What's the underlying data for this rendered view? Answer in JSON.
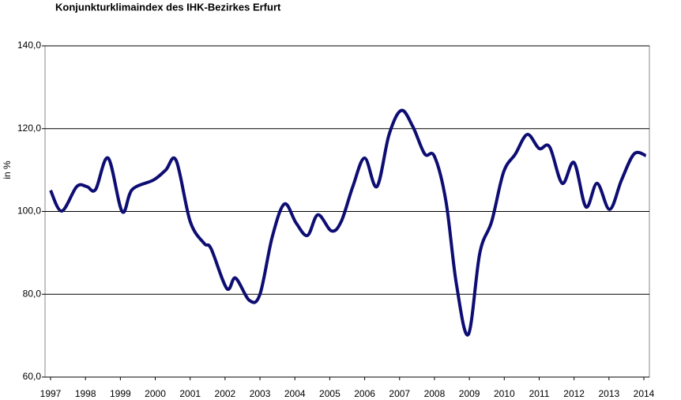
{
  "chart_data": {
    "type": "line",
    "title": "Konjunkturklimaindex des IHK-Bezirkes Erfurt",
    "y_label": "in %",
    "x": [
      1997,
      1997.32,
      1997.75,
      1998.04,
      1998.29,
      1998.65,
      1999.05,
      1999.34,
      1999.95,
      2000.3,
      2000.6,
      2001.0,
      2001.4,
      2001.6,
      2002.05,
      2002.3,
      2002.7,
      2003.0,
      2003.35,
      2003.7,
      2004.03,
      2004.36,
      2004.66,
      2005.05,
      2005.33,
      2005.66,
      2006.0,
      2006.35,
      2006.7,
      2007.05,
      2007.38,
      2007.72,
      2008.0,
      2008.33,
      2008.63,
      2008.97,
      2009.3,
      2009.64,
      2009.98,
      2010.32,
      2010.66,
      2011.0,
      2011.3,
      2011.66,
      2012.0,
      2012.34,
      2012.66,
      2013.02,
      2013.36,
      2013.72,
      2014.06
    ],
    "series": [
      {
        "name": "Konjunkturklimaindex",
        "color": "#0d0d73",
        "values": [
          105.1,
          100.1,
          106.0,
          106.0,
          105.3,
          112.9,
          100.0,
          105.3,
          107.6,
          110.0,
          112.3,
          97.6,
          92.3,
          91.0,
          81.4,
          83.9,
          78.5,
          80.0,
          93.8,
          101.8,
          97.3,
          94.2,
          99.2,
          95.3,
          97.6,
          106.0,
          112.9,
          106.0,
          118.6,
          124.4,
          120.5,
          113.9,
          113.3,
          102.4,
          82.4,
          70.3,
          90.0,
          97.6,
          109.5,
          113.9,
          118.6,
          115.2,
          115.6,
          106.8,
          111.8,
          101.1,
          106.8,
          100.5,
          107.6,
          113.9,
          113.5
        ]
      }
    ],
    "xlim": [
      1997,
      2014
    ],
    "xticks": [
      1997,
      1998,
      1999,
      2000,
      2001,
      2002,
      2003,
      2004,
      2005,
      2006,
      2007,
      2008,
      2009,
      2010,
      2011,
      2012,
      2013,
      2014
    ],
    "ylim": [
      60,
      140
    ],
    "yticks": [
      {
        "value": 60,
        "label": "60,0"
      },
      {
        "value": 80,
        "label": "80,0"
      },
      {
        "value": 100,
        "label": "100,0"
      },
      {
        "value": 120,
        "label": "120,0"
      },
      {
        "value": 140,
        "label": "140,0"
      }
    ],
    "grid": true
  }
}
